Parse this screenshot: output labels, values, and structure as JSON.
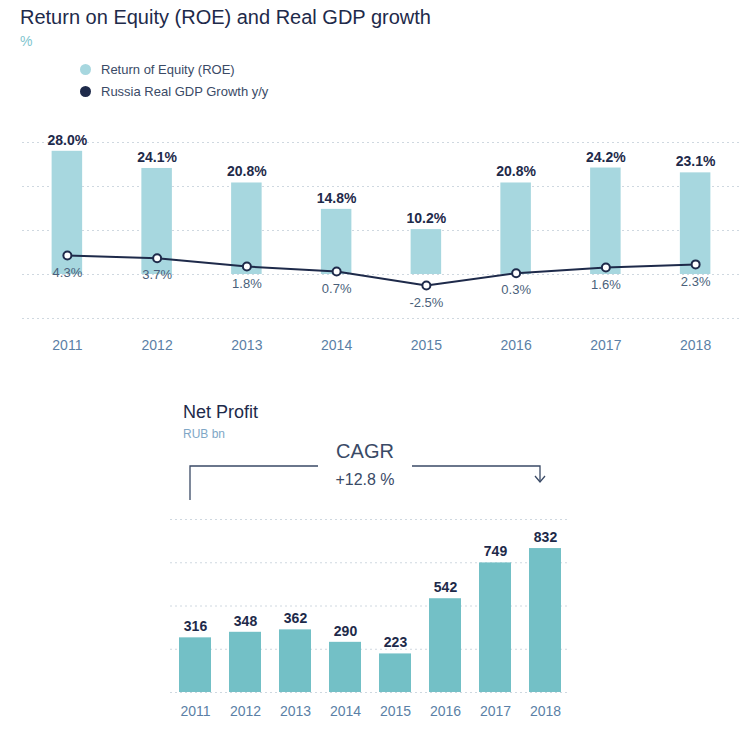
{
  "chart_data": [
    {
      "type": "bar",
      "title": "Return on Equity (ROE) and Real GDP growth",
      "subtitle": "%",
      "categories": [
        "2011",
        "2012",
        "2013",
        "2014",
        "2015",
        "2016",
        "2017",
        "2018"
      ],
      "series": [
        {
          "name": "Return of Equity (ROE)",
          "type": "bar",
          "color": "#a7d7df",
          "values": [
            28.0,
            24.1,
            20.8,
            14.8,
            10.2,
            20.8,
            24.2,
            23.1
          ],
          "value_labels": [
            "28.0%",
            "24.1%",
            "20.8%",
            "14.8%",
            "10.2%",
            "20.8%",
            "24.2%",
            "23.1%"
          ]
        },
        {
          "name": "Russia Real GDP Growth y/y",
          "type": "line",
          "color": "#1e2a4a",
          "marker": "circle",
          "values": [
            4.3,
            3.7,
            1.8,
            0.7,
            -2.5,
            0.3,
            1.6,
            2.3
          ],
          "value_labels": [
            "4.3%",
            "3.7%",
            "1.8%",
            "0.7%",
            "-2.5%",
            "0.3%",
            "1.6%",
            "2.3%"
          ]
        }
      ],
      "ylim": [
        -10,
        30
      ],
      "yticks": [
        -10,
        0,
        10,
        20,
        30
      ],
      "grid": true,
      "legend": "top-left",
      "data_labels": true,
      "tick_labels": "x"
    },
    {
      "type": "bar",
      "title": "Net Profit",
      "subtitle": "RUB bn",
      "annotations": [
        "CAGR",
        "+12.8 %"
      ],
      "categories": [
        "2011",
        "2012",
        "2013",
        "2014",
        "2015",
        "2016",
        "2017",
        "2018"
      ],
      "values": [
        316,
        348,
        362,
        290,
        223,
        542,
        749,
        832
      ],
      "color": "#73c0c6",
      "ylim": [
        0,
        1000
      ],
      "yticks": [
        0,
        250,
        500,
        750,
        1000
      ],
      "grid": true,
      "data_labels": true,
      "tick_labels": "x"
    }
  ]
}
